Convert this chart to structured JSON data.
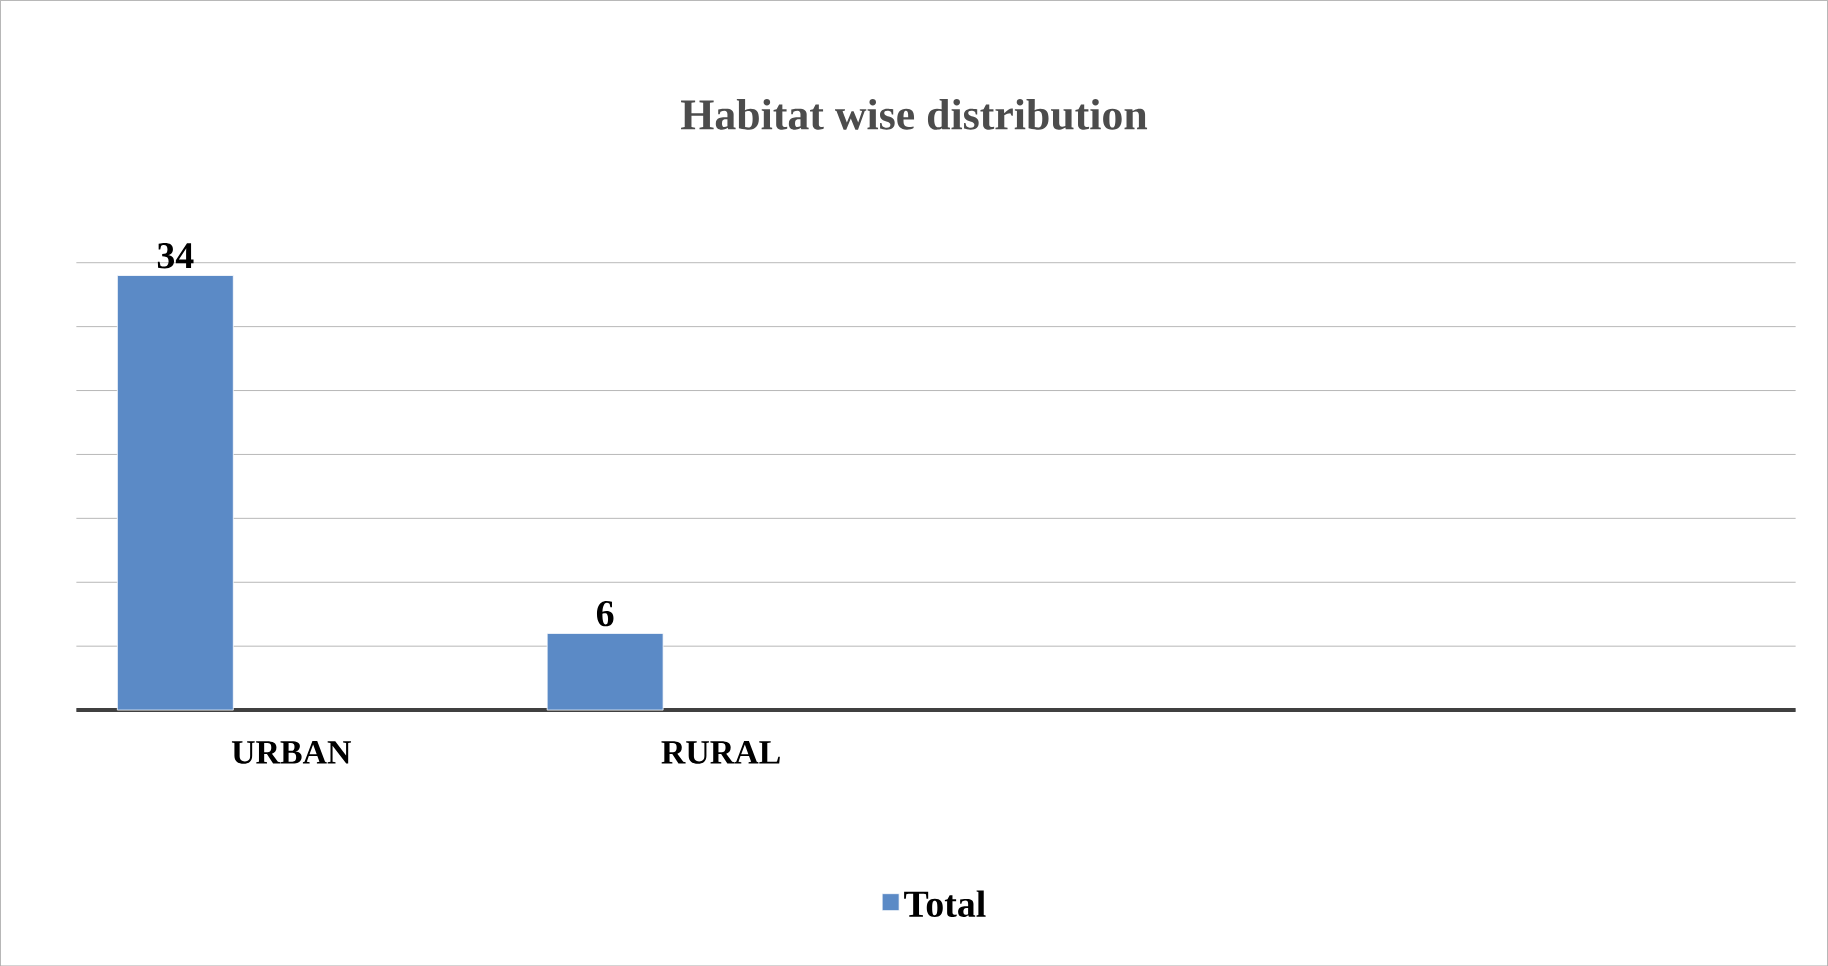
{
  "chart_data": {
    "type": "bar",
    "title": "Habitat wise distribution",
    "categories": [
      "URBAN",
      "RURAL",
      null,
      null
    ],
    "series": [
      {
        "name": "Total",
        "color": "#5b8ac6",
        "values": [
          34,
          6,
          null,
          null
        ]
      },
      {
        "color": "#c0504d",
        "values": [
          null,
          null,
          null,
          null
        ]
      },
      {
        "color": "#9bbb59",
        "values": [
          null,
          null,
          null,
          null
        ]
      }
    ],
    "tick_labels": "x",
    "grid": "y",
    "data_labels": true,
    "legend": "bottom"
  }
}
